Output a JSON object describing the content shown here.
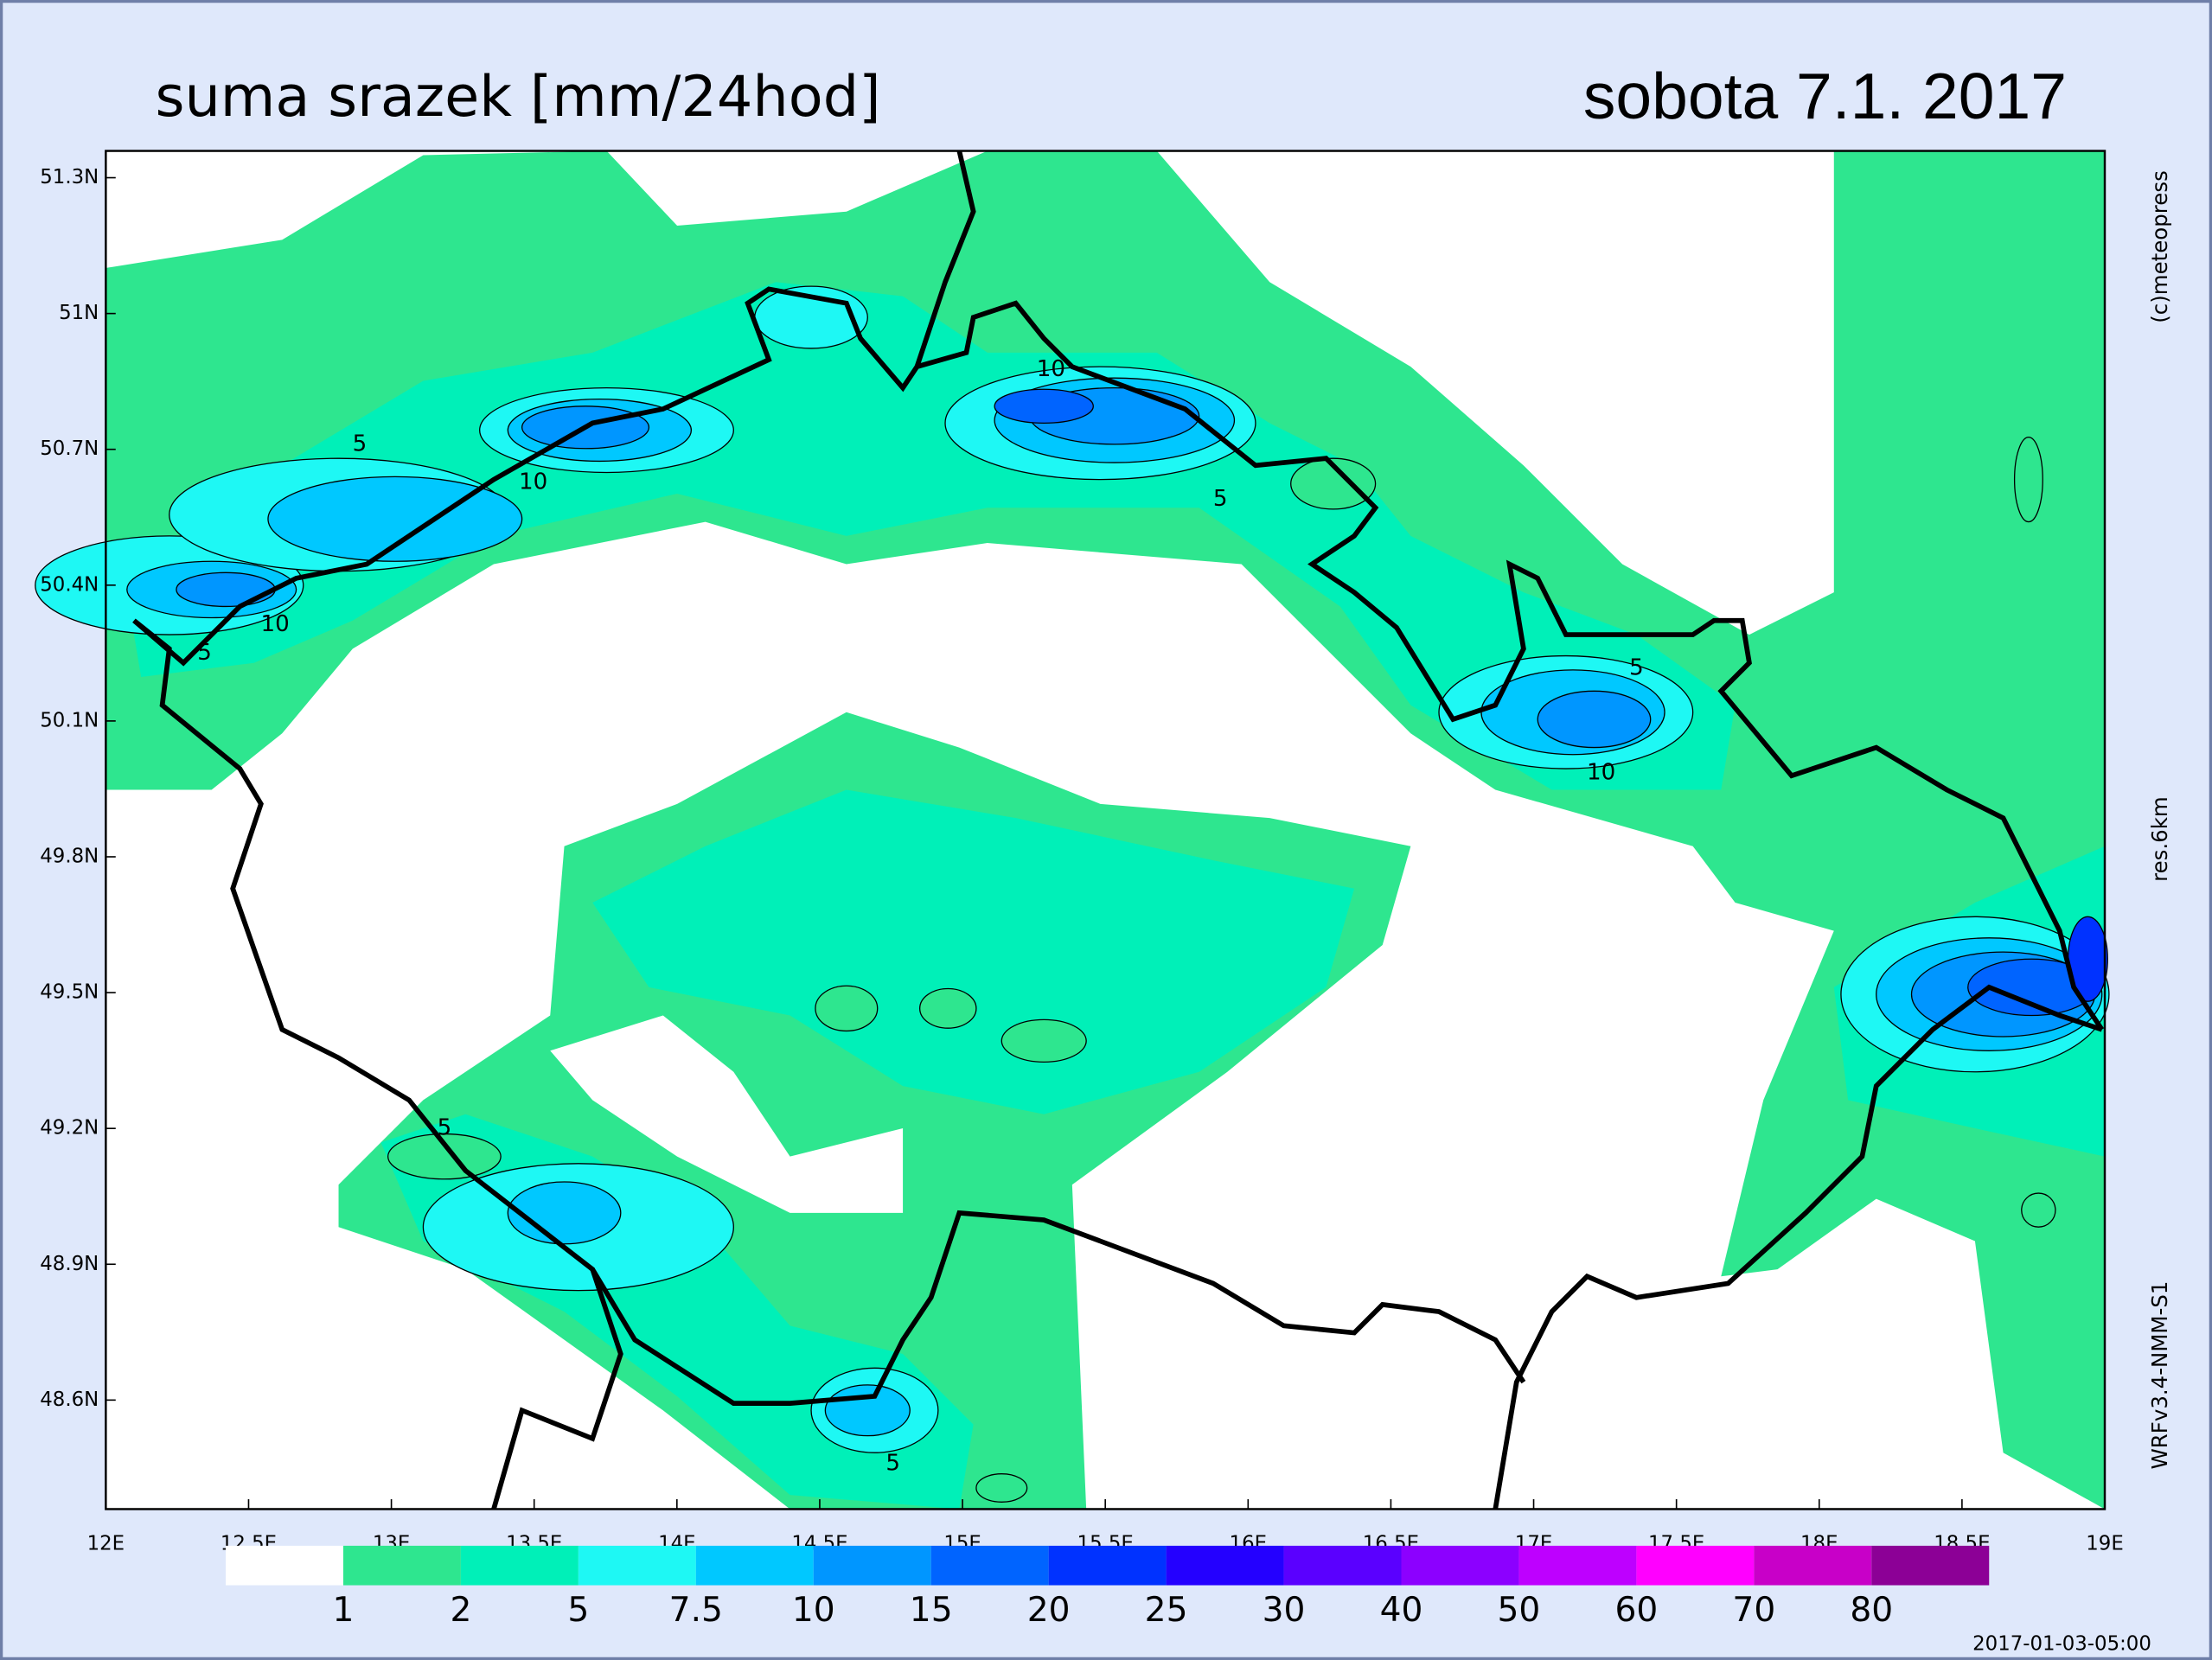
{
  "header": {
    "title": "suma srazek [mm/24hod]",
    "date": "sobota 7.1. 2017"
  },
  "map": {
    "lat_labels": [
      "51.3N",
      "51N",
      "50.7N",
      "50.4N",
      "50.1N",
      "49.8N",
      "49.5N",
      "49.2N",
      "48.9N",
      "48.6N"
    ],
    "lon_labels": [
      "12E",
      "12.5E",
      "13E",
      "13.5E",
      "14E",
      "14.5E",
      "15E",
      "15.5E",
      "16E",
      "16.5E",
      "17E",
      "17.5E",
      "18E",
      "18.5E",
      "19E"
    ],
    "contour_labels": [
      "5",
      "10",
      "10",
      "5",
      "10",
      "5",
      "5",
      "10",
      "5",
      "5"
    ]
  },
  "legend": {
    "colors": [
      "#ffffff",
      "#2ee68f",
      "#00f0b8",
      "#1ef8f4",
      "#00c8ff",
      "#0096ff",
      "#0064ff",
      "#0032ff",
      "#2400ff",
      "#5a00ff",
      "#8c00ff",
      "#be00ff",
      "#ff00ff",
      "#c800c8",
      "#8c0096"
    ],
    "labels": [
      "1",
      "2",
      "5",
      "7.5",
      "10",
      "15",
      "20",
      "25",
      "30",
      "40",
      "50",
      "60",
      "70",
      "80"
    ]
  },
  "credits": {
    "copyright": "(c)meteopress",
    "resolution": "res.6km",
    "model": "WRFv3.4-NMM-S1",
    "run": "2017-01-03-05:00"
  }
}
